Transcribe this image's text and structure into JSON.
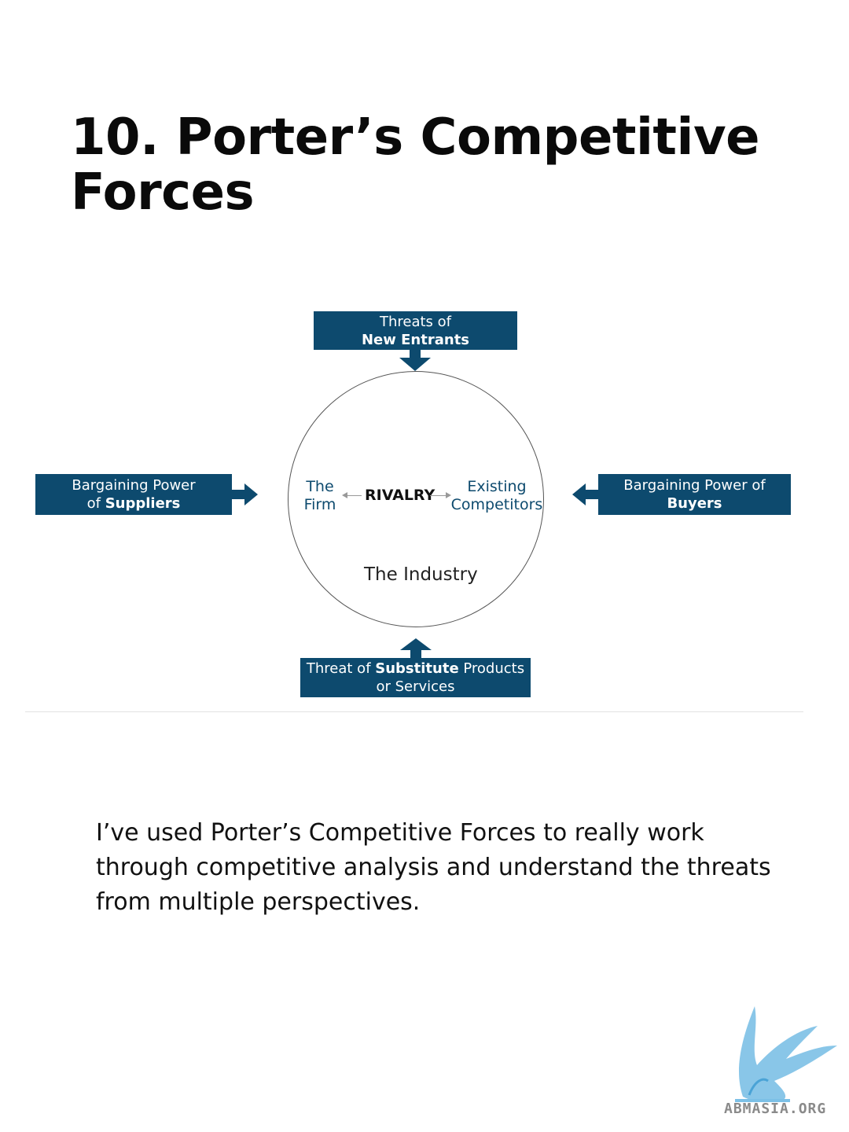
{
  "title": "10. Porter’s Competitive Forces",
  "diagram": {
    "top_box": {
      "line1": "Threats of",
      "line2": "New Entrants"
    },
    "left_box": {
      "line1": "Bargaining Power",
      "line2_prefix": "of ",
      "line2_bold": "Suppliers"
    },
    "right_box": {
      "line1": "Bargaining Power of",
      "line2": "Buyers"
    },
    "bottom_box": {
      "line1_prefix": "Threat of ",
      "line1_bold": "Substitute",
      "line1_suffix": " Products",
      "line2": "or Services"
    },
    "circle": {
      "firm_line1": "The",
      "firm_line2": "Firm",
      "rivalry": "RIVALRY",
      "competitors_line1": "Existing",
      "competitors_line2": "Competitors",
      "industry": "The Industry"
    },
    "colors": {
      "box": "#0d4a6e",
      "circle_text": "#0d4a6e"
    }
  },
  "body": "I’ve used Porter’s Competitive Forces to really work through competitive analysis and understand the threats from multiple perspectives.",
  "logo": {
    "icon": "griffin-logo-icon",
    "text": "ABMASIA.ORG"
  }
}
